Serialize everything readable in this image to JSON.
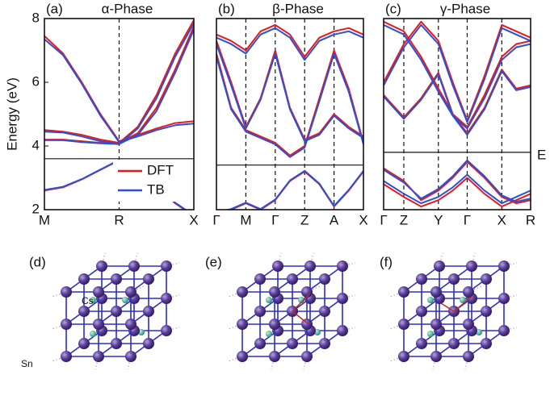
{
  "chart_data": [
    {
      "type": "line",
      "panel": "(a)",
      "title": "α-Phase",
      "ylabel": "Energy (eV)",
      "x": [
        0,
        0.25,
        0.5,
        0.75,
        1,
        1.25,
        1.5,
        1.75,
        2
      ],
      "xlim": [
        0,
        2
      ],
      "xticks": [
        {
          "value": 0,
          "label": "M"
        },
        {
          "value": 1,
          "label": "R"
        },
        {
          "value": 2,
          "label": "X"
        }
      ],
      "ylim": [
        2,
        8
      ],
      "yticks": [
        2,
        4,
        6,
        8
      ],
      "fermi_level": 3.6,
      "legend": "lower right",
      "series": [
        {
          "name": "DFT",
          "color": "#e8191c",
          "bands": [
            [
              2.6,
              2.7,
              2.95,
              3.25,
              3.55,
              3.2,
              2.75,
              2.2,
              1.8
            ],
            [
              4.5,
              4.45,
              4.35,
              4.2,
              4.1,
              4.6,
              5.6,
              6.9,
              7.95
            ],
            [
              4.2,
              4.2,
              4.15,
              4.1,
              4.1,
              4.4,
              5.2,
              6.4,
              7.75
            ],
            [
              7.45,
              6.9,
              6.0,
              5.0,
              4.15,
              4.35,
              4.55,
              4.72,
              4.78
            ]
          ]
        },
        {
          "name": "TB",
          "color": "#2b50d8",
          "bands": [
            [
              2.62,
              2.72,
              2.96,
              3.26,
              3.56,
              3.22,
              2.76,
              2.22,
              1.82
            ],
            [
              4.45,
              4.42,
              4.3,
              4.15,
              4.05,
              4.55,
              5.5,
              6.8,
              7.85
            ],
            [
              4.18,
              4.18,
              4.12,
              4.08,
              4.06,
              4.35,
              5.1,
              6.3,
              7.65
            ],
            [
              7.35,
              6.85,
              5.95,
              4.95,
              4.12,
              4.3,
              4.5,
              4.65,
              4.7
            ]
          ]
        }
      ]
    },
    {
      "type": "line",
      "panel": "(b)",
      "title": "β-Phase",
      "x": [
        0,
        0.5,
        1,
        1.5,
        2,
        2.5,
        3,
        3.5,
        4,
        4.5,
        5
      ],
      "xlim": [
        0,
        5
      ],
      "xticks": [
        {
          "value": 0,
          "label": "Γ"
        },
        {
          "value": 1,
          "label": "M"
        },
        {
          "value": 2,
          "label": "Γ"
        },
        {
          "value": 3,
          "label": "Z"
        },
        {
          "value": 4,
          "label": "A"
        },
        {
          "value": 5,
          "label": "X"
        }
      ],
      "ylim": [
        2,
        8
      ],
      "fermi_level": 3.4,
      "series": [
        {
          "color": "#e8191c",
          "bands": [
            [
              1.9,
              2.0,
              2.2,
              2.0,
              2.3,
              2.9,
              3.2,
              2.8,
              2.1,
              2.6,
              3.2
            ],
            [
              6.9,
              5.2,
              4.5,
              4.3,
              4.1,
              3.7,
              4.0,
              5.5,
              7.0,
              5.8,
              4.1
            ],
            [
              7.3,
              6.0,
              4.6,
              5.5,
              7.0,
              5.2,
              4.2,
              4.4,
              5.0,
              4.6,
              4.3
            ],
            [
              7.5,
              7.3,
              7.0,
              7.6,
              7.8,
              7.5,
              6.8,
              7.4,
              7.6,
              7.7,
              7.5
            ]
          ]
        },
        {
          "color": "#2b50d8",
          "bands": [
            [
              1.92,
              2.02,
              2.22,
              2.02,
              2.32,
              2.92,
              3.22,
              2.82,
              2.12,
              2.62,
              3.22
            ],
            [
              6.8,
              5.15,
              4.45,
              4.25,
              4.05,
              3.65,
              3.95,
              5.4,
              6.9,
              5.7,
              4.05
            ],
            [
              7.2,
              5.9,
              4.55,
              5.45,
              6.9,
              5.15,
              4.15,
              4.35,
              4.95,
              4.55,
              4.25
            ],
            [
              7.4,
              7.2,
              6.9,
              7.5,
              7.7,
              7.4,
              6.7,
              7.3,
              7.5,
              7.6,
              7.4
            ]
          ]
        }
      ]
    },
    {
      "type": "line",
      "panel": "(c)",
      "title": "γ-Phase",
      "fermi_label": "E",
      "x": [
        0,
        0.7,
        1.3,
        1.9,
        2.4,
        2.9,
        3.5,
        4.1,
        4.6,
        5.1
      ],
      "xlim": [
        0,
        5.1
      ],
      "xticks": [
        {
          "value": 0,
          "label": "Γ"
        },
        {
          "value": 0.7,
          "label": "Z"
        },
        {
          "value": 1.9,
          "label": "Y"
        },
        {
          "value": 2.9,
          "label": "Γ"
        },
        {
          "value": 4.1,
          "label": "X"
        },
        {
          "value": 5.1,
          "label": "R"
        }
      ],
      "ylim": [
        2,
        8
      ],
      "fermi_level": 3.8,
      "series": [
        {
          "color": "#e8191c",
          "bands": [
            [
              3.3,
              2.9,
              2.3,
              2.6,
              3.0,
              3.5,
              3.0,
              2.4,
              2.2,
              2.3
            ],
            [
              2.8,
              2.4,
              2.1,
              2.3,
              2.6,
              3.0,
              2.5,
              2.1,
              2.3,
              2.5
            ],
            [
              5.6,
              4.9,
              5.5,
              6.3,
              5.0,
              4.4,
              5.2,
              6.4,
              5.8,
              5.9
            ],
            [
              7.9,
              7.6,
              6.8,
              5.8,
              5.0,
              4.6,
              5.6,
              6.8,
              7.2,
              7.3
            ],
            [
              6.0,
              7.2,
              7.9,
              7.3,
              6.0,
              4.8,
              6.2,
              7.8,
              7.6,
              7.4
            ]
          ]
        },
        {
          "color": "#2b50d8",
          "bands": [
            [
              3.25,
              2.85,
              2.35,
              2.65,
              3.05,
              3.55,
              3.05,
              2.45,
              2.25,
              2.35
            ],
            [
              2.9,
              2.5,
              2.2,
              2.4,
              2.7,
              3.1,
              2.6,
              2.2,
              2.4,
              2.6
            ],
            [
              5.55,
              4.85,
              5.45,
              6.25,
              4.95,
              4.35,
              5.15,
              6.35,
              5.75,
              5.85
            ],
            [
              7.8,
              7.5,
              6.7,
              5.7,
              4.95,
              4.55,
              5.5,
              6.7,
              7.1,
              7.2
            ],
            [
              5.9,
              7.1,
              7.8,
              7.2,
              5.9,
              4.75,
              6.1,
              7.7,
              7.5,
              7.3
            ]
          ]
        }
      ]
    }
  ],
  "structures": [
    {
      "label": "(d)",
      "atom_labels": [
        "Cs",
        "Sn"
      ]
    },
    {
      "label": "(e)"
    },
    {
      "label": "(f)"
    }
  ]
}
